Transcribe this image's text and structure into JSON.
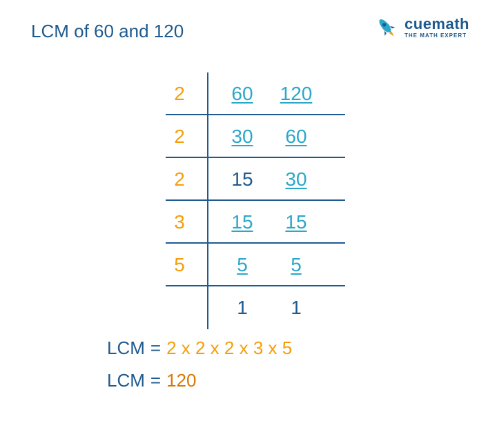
{
  "colors": {
    "blue": "#1e5a8e",
    "orange": "#f59e0b",
    "dark_orange": "#d97706",
    "cyan": "#2ba7c9",
    "line": "#1e5a8e",
    "rocket_body": "#2ba7c9",
    "rocket_flame": "#f59e0b"
  },
  "title": "LCM of 60 and 120",
  "logo": {
    "main": "cuemath",
    "sub": "THE MATH EXPERT"
  },
  "ladder": {
    "rows": [
      {
        "divisor": "2",
        "values": [
          {
            "n": "60",
            "ul": true
          },
          {
            "n": "120",
            "ul": true
          }
        ]
      },
      {
        "divisor": "2",
        "values": [
          {
            "n": "30",
            "ul": true
          },
          {
            "n": "60",
            "ul": true
          }
        ]
      },
      {
        "divisor": "2",
        "values": [
          {
            "n": "15",
            "ul": false
          },
          {
            "n": "30",
            "ul": true
          }
        ]
      },
      {
        "divisor": "3",
        "values": [
          {
            "n": "15",
            "ul": true
          },
          {
            "n": "15",
            "ul": true
          }
        ]
      },
      {
        "divisor": "5",
        "values": [
          {
            "n": "5",
            "ul": true
          },
          {
            "n": "5",
            "ul": true
          }
        ]
      }
    ],
    "final": [
      "1",
      "1"
    ]
  },
  "results": {
    "label": "LCM",
    "eq": "=",
    "factorization": "2 x 2 x 2 x 3 x 5",
    "value": "120"
  }
}
